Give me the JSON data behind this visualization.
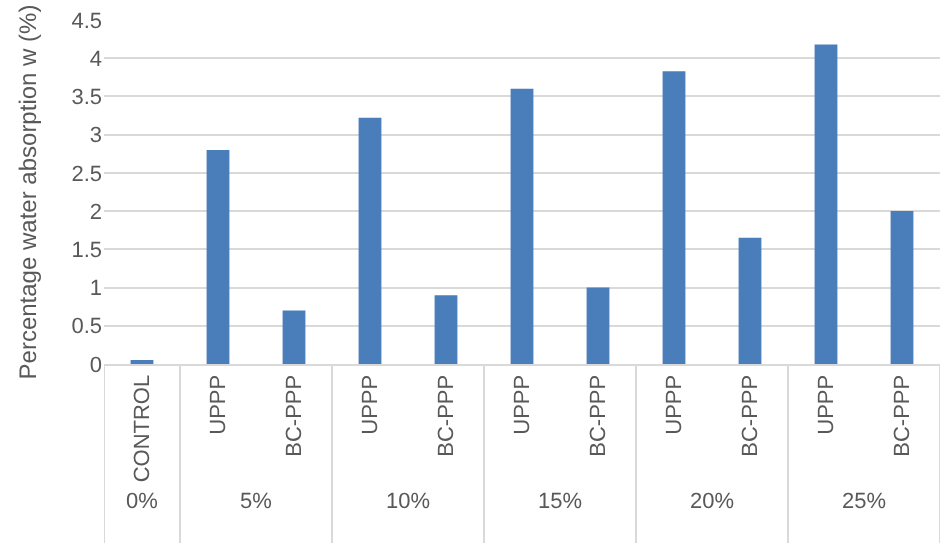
{
  "chart_data": {
    "type": "bar",
    "ylabel": "Percentage water absorption w (%)",
    "categories": [
      "CONTROL",
      "UPPP",
      "BC-PPP",
      "UPPP",
      "BC-PPP",
      "UPPP",
      "BC-PPP",
      "UPPP",
      "BC-PPP",
      "UPPP",
      "BC-PPP"
    ],
    "values": [
      0.05,
      2.8,
      0.7,
      3.22,
      0.9,
      3.6,
      1.0,
      3.83,
      1.65,
      4.18,
      2.0
    ],
    "color": "#4a7ebb",
    "annotations": [
      "0%",
      "5%",
      "10%",
      "15%",
      "20%",
      "25%"
    ],
    "ylim": [
      0,
      4.5
    ],
    "yticks": [
      0,
      0.5,
      1,
      1.5,
      2,
      2.5,
      3,
      3.5,
      4,
      4.5
    ],
    "grid": "y"
  }
}
